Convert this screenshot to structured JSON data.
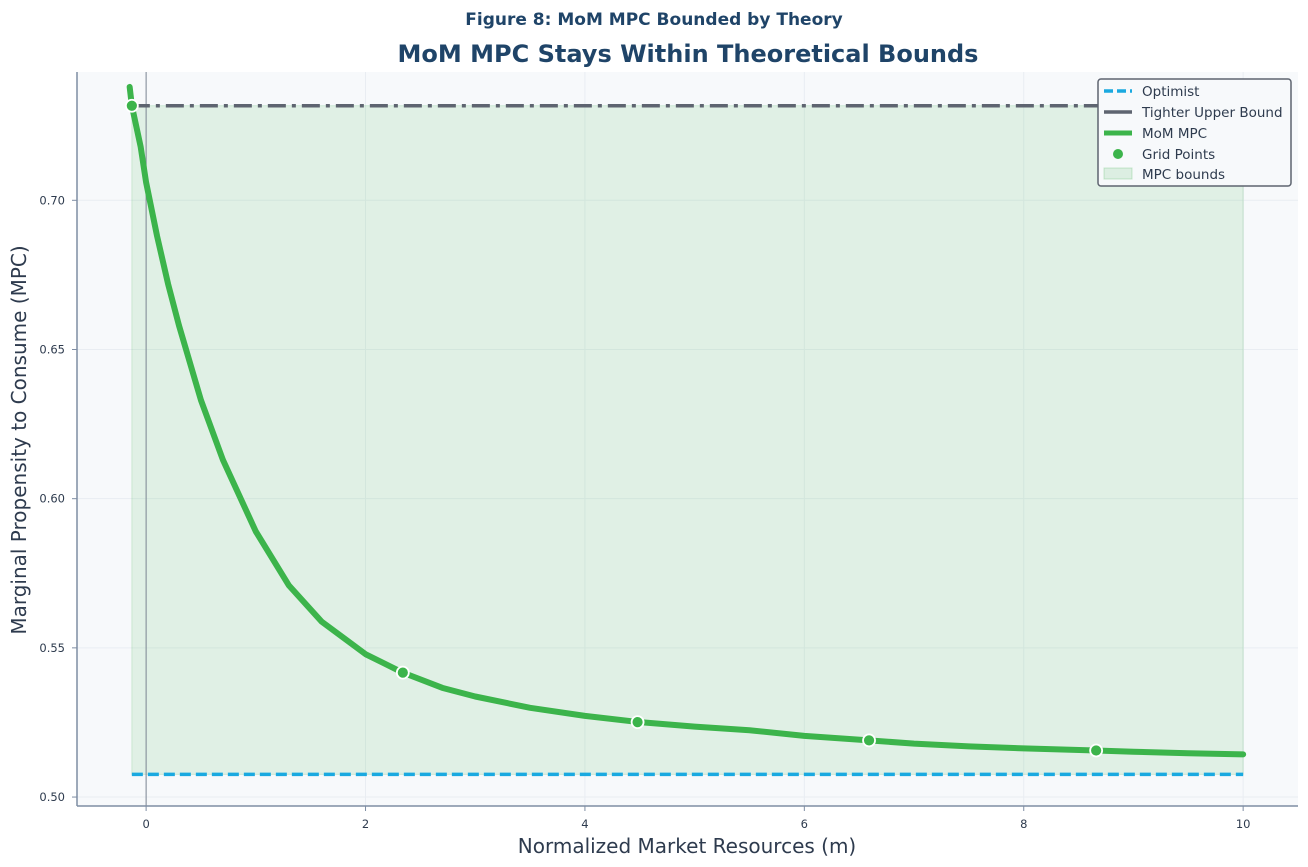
{
  "figure_title": "Figure 8: MoM MPC Bounded by Theory",
  "colors": {
    "optimist": "#1aa9e0",
    "upper_bound": "#5e6470",
    "mom_mpc": "#3cb44b",
    "bounds_fill": "#3cb44b",
    "title": "#1f4468",
    "plot_bg": "#f7f9fb"
  },
  "chart_data": {
    "type": "line",
    "title": "MoM MPC Stays Within Theoretical Bounds",
    "xlabel": "Normalized Market Resources (m)",
    "ylabel": "Marginal Propensity to Consume (MPC)",
    "xlim": [
      -0.63,
      10.5
    ],
    "ylim": [
      0.497,
      0.743
    ],
    "x_ticks": [
      0,
      2,
      4,
      6,
      8,
      10
    ],
    "y_ticks": [
      0.5,
      0.55,
      0.6,
      0.65,
      0.7
    ],
    "y_tick_labels": [
      "0.50",
      "0.55",
      "0.60",
      "0.65",
      "0.70"
    ],
    "grid": true,
    "legend_position": "top-right",
    "legend": [
      "Optimist",
      "Tighter Upper Bound",
      "MoM MPC",
      "Grid Points",
      "MPC bounds"
    ],
    "vertical_reference_x": 0,
    "series": [
      {
        "name": "Optimist",
        "style": "dashed",
        "x": [
          -0.13,
          10.0
        ],
        "y": [
          0.5076,
          0.5076
        ]
      },
      {
        "name": "Tighter Upper Bound",
        "style": "dashdot",
        "x": [
          -0.13,
          10.0
        ],
        "y": [
          0.7317,
          0.7317
        ]
      },
      {
        "name": "MoM MPC",
        "style": "solid",
        "x": [
          -0.15,
          -0.13,
          -0.05,
          0.0,
          0.1,
          0.2,
          0.3,
          0.5,
          0.7,
          1.0,
          1.3,
          1.6,
          2.0,
          2.34,
          2.7,
          3.0,
          3.5,
          4.0,
          4.5,
          5.0,
          5.5,
          6.0,
          6.59,
          7.0,
          7.5,
          8.0,
          8.66,
          9.0,
          9.5,
          10.0
        ],
        "y": [
          0.738,
          0.7317,
          0.718,
          0.706,
          0.688,
          0.672,
          0.658,
          0.633,
          0.613,
          0.589,
          0.571,
          0.5588,
          0.5479,
          0.5417,
          0.5366,
          0.5337,
          0.5299,
          0.5272,
          0.5251,
          0.5236,
          0.5224,
          0.5205,
          0.519,
          0.5179,
          0.517,
          0.5163,
          0.5156,
          0.5152,
          0.5147,
          0.5143
        ]
      },
      {
        "name": "Grid Points",
        "style": "markers",
        "x": [
          -0.13,
          2.34,
          4.48,
          6.59,
          8.66
        ],
        "y": [
          0.7317,
          0.5417,
          0.5251,
          0.519,
          0.5156
        ]
      }
    ],
    "fill_between": {
      "name": "MPC bounds",
      "x": [
        -0.13,
        10.0
      ],
      "y_lower": 0.5076,
      "y_upper": 0.7317
    }
  }
}
